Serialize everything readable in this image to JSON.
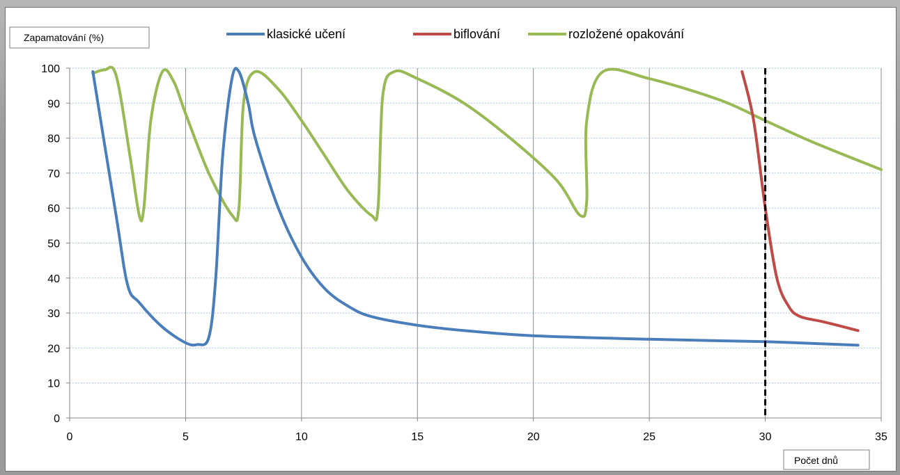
{
  "chart_data": {
    "type": "line",
    "xlabel": "Počet dnů",
    "ylabel": "Zapamatování (%)",
    "xlim": [
      0,
      35
    ],
    "ylim": [
      0,
      100
    ],
    "x_ticks": [
      "0",
      "5",
      "10",
      "15",
      "20",
      "25",
      "30",
      "35"
    ],
    "y_ticks": [
      "0",
      "10",
      "20",
      "30",
      "40",
      "50",
      "60",
      "70",
      "80",
      "90",
      "100"
    ],
    "grid": true,
    "legend_position": "top",
    "marker_line_x": 30,
    "series": [
      {
        "name": "klasické učení",
        "color": "#4a7ebb",
        "points": [
          [
            1,
            99
          ],
          [
            2,
            58
          ],
          [
            2.5,
            38
          ],
          [
            3,
            33
          ],
          [
            4,
            26
          ],
          [
            5,
            21.5
          ],
          [
            5.5,
            21
          ],
          [
            6,
            23
          ],
          [
            6.3,
            40
          ],
          [
            6.6,
            75
          ],
          [
            7,
            97
          ],
          [
            7.3,
            99
          ],
          [
            7.7,
            90
          ],
          [
            8,
            80
          ],
          [
            9,
            60
          ],
          [
            10,
            46
          ],
          [
            11,
            37
          ],
          [
            12,
            32
          ],
          [
            13,
            29
          ],
          [
            15,
            26.5
          ],
          [
            17,
            25
          ],
          [
            20,
            23.5
          ],
          [
            25,
            22.5
          ],
          [
            30,
            21.8
          ],
          [
            34,
            20.8
          ]
        ]
      },
      {
        "name": "biflování",
        "color": "#be4b48",
        "points": [
          [
            29,
            99
          ],
          [
            29.5,
            85
          ],
          [
            30,
            60
          ],
          [
            30.5,
            40
          ],
          [
            31,
            32
          ],
          [
            31.5,
            29
          ],
          [
            32.5,
            27.5
          ],
          [
            34,
            25
          ]
        ]
      },
      {
        "name": "rozložené opakování",
        "color": "#98b954",
        "points": [
          [
            1,
            98.5
          ],
          [
            1.5,
            99.5
          ],
          [
            2,
            98
          ],
          [
            2.6,
            75
          ],
          [
            3,
            58
          ],
          [
            3.2,
            60
          ],
          [
            3.5,
            85
          ],
          [
            4,
            99
          ],
          [
            4.5,
            96
          ],
          [
            5,
            87
          ],
          [
            6,
            70
          ],
          [
            7,
            58
          ],
          [
            7.3,
            60
          ],
          [
            7.5,
            90
          ],
          [
            8,
            99
          ],
          [
            9,
            94
          ],
          [
            10,
            85
          ],
          [
            11,
            75
          ],
          [
            12,
            65
          ],
          [
            13,
            58
          ],
          [
            13.3,
            60
          ],
          [
            13.5,
            92
          ],
          [
            14,
            99
          ],
          [
            15,
            97
          ],
          [
            17,
            90
          ],
          [
            19,
            80
          ],
          [
            21,
            68
          ],
          [
            22,
            58
          ],
          [
            22.3,
            62
          ],
          [
            22.3,
            85
          ],
          [
            23,
            99
          ],
          [
            25,
            97
          ],
          [
            28,
            91
          ],
          [
            30,
            85
          ],
          [
            32,
            79
          ],
          [
            35,
            71
          ]
        ]
      }
    ]
  }
}
